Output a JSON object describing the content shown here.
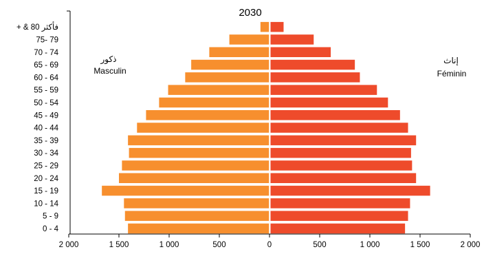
{
  "chart_data": {
    "type": "bar",
    "title": "2030",
    "male_label_ar": "ذكور",
    "male_label": "Masculin",
    "female_label_ar": "إناث",
    "female_label": "Féminin",
    "categories": [
      "+ & 80 فأكثر",
      "75- 79",
      "70 - 74",
      "65 - 69",
      "60 - 64",
      "55 - 59",
      "50 - 54",
      "45 - 49",
      "40 - 44",
      "35 - 39",
      "30 - 34",
      "25 - 29",
      "20 - 24",
      "15 - 19",
      "10 - 14",
      "5 - 9",
      "0 - 4"
    ],
    "series": [
      {
        "name": "Masculin",
        "color": "#f78f2e",
        "values": [
          90,
          400,
          600,
          780,
          840,
          1010,
          1100,
          1230,
          1320,
          1410,
          1400,
          1470,
          1500,
          1670,
          1450,
          1440,
          1410
        ]
      },
      {
        "name": "Féminin",
        "color": "#ee4b2b",
        "values": [
          130,
          430,
          600,
          840,
          890,
          1060,
          1170,
          1290,
          1370,
          1450,
          1400,
          1410,
          1450,
          1590,
          1390,
          1370,
          1340
        ]
      }
    ],
    "xlim": [
      -2000,
      2000
    ],
    "x_ticks": [
      -2000,
      -1500,
      -1000,
      -500,
      0,
      500,
      1000,
      1500,
      2000
    ],
    "x_tick_labels": [
      "2 000",
      "1 500",
      "1 000",
      "500",
      "0",
      "500",
      "1 000",
      "1 500",
      "2 000"
    ],
    "grid": false
  }
}
